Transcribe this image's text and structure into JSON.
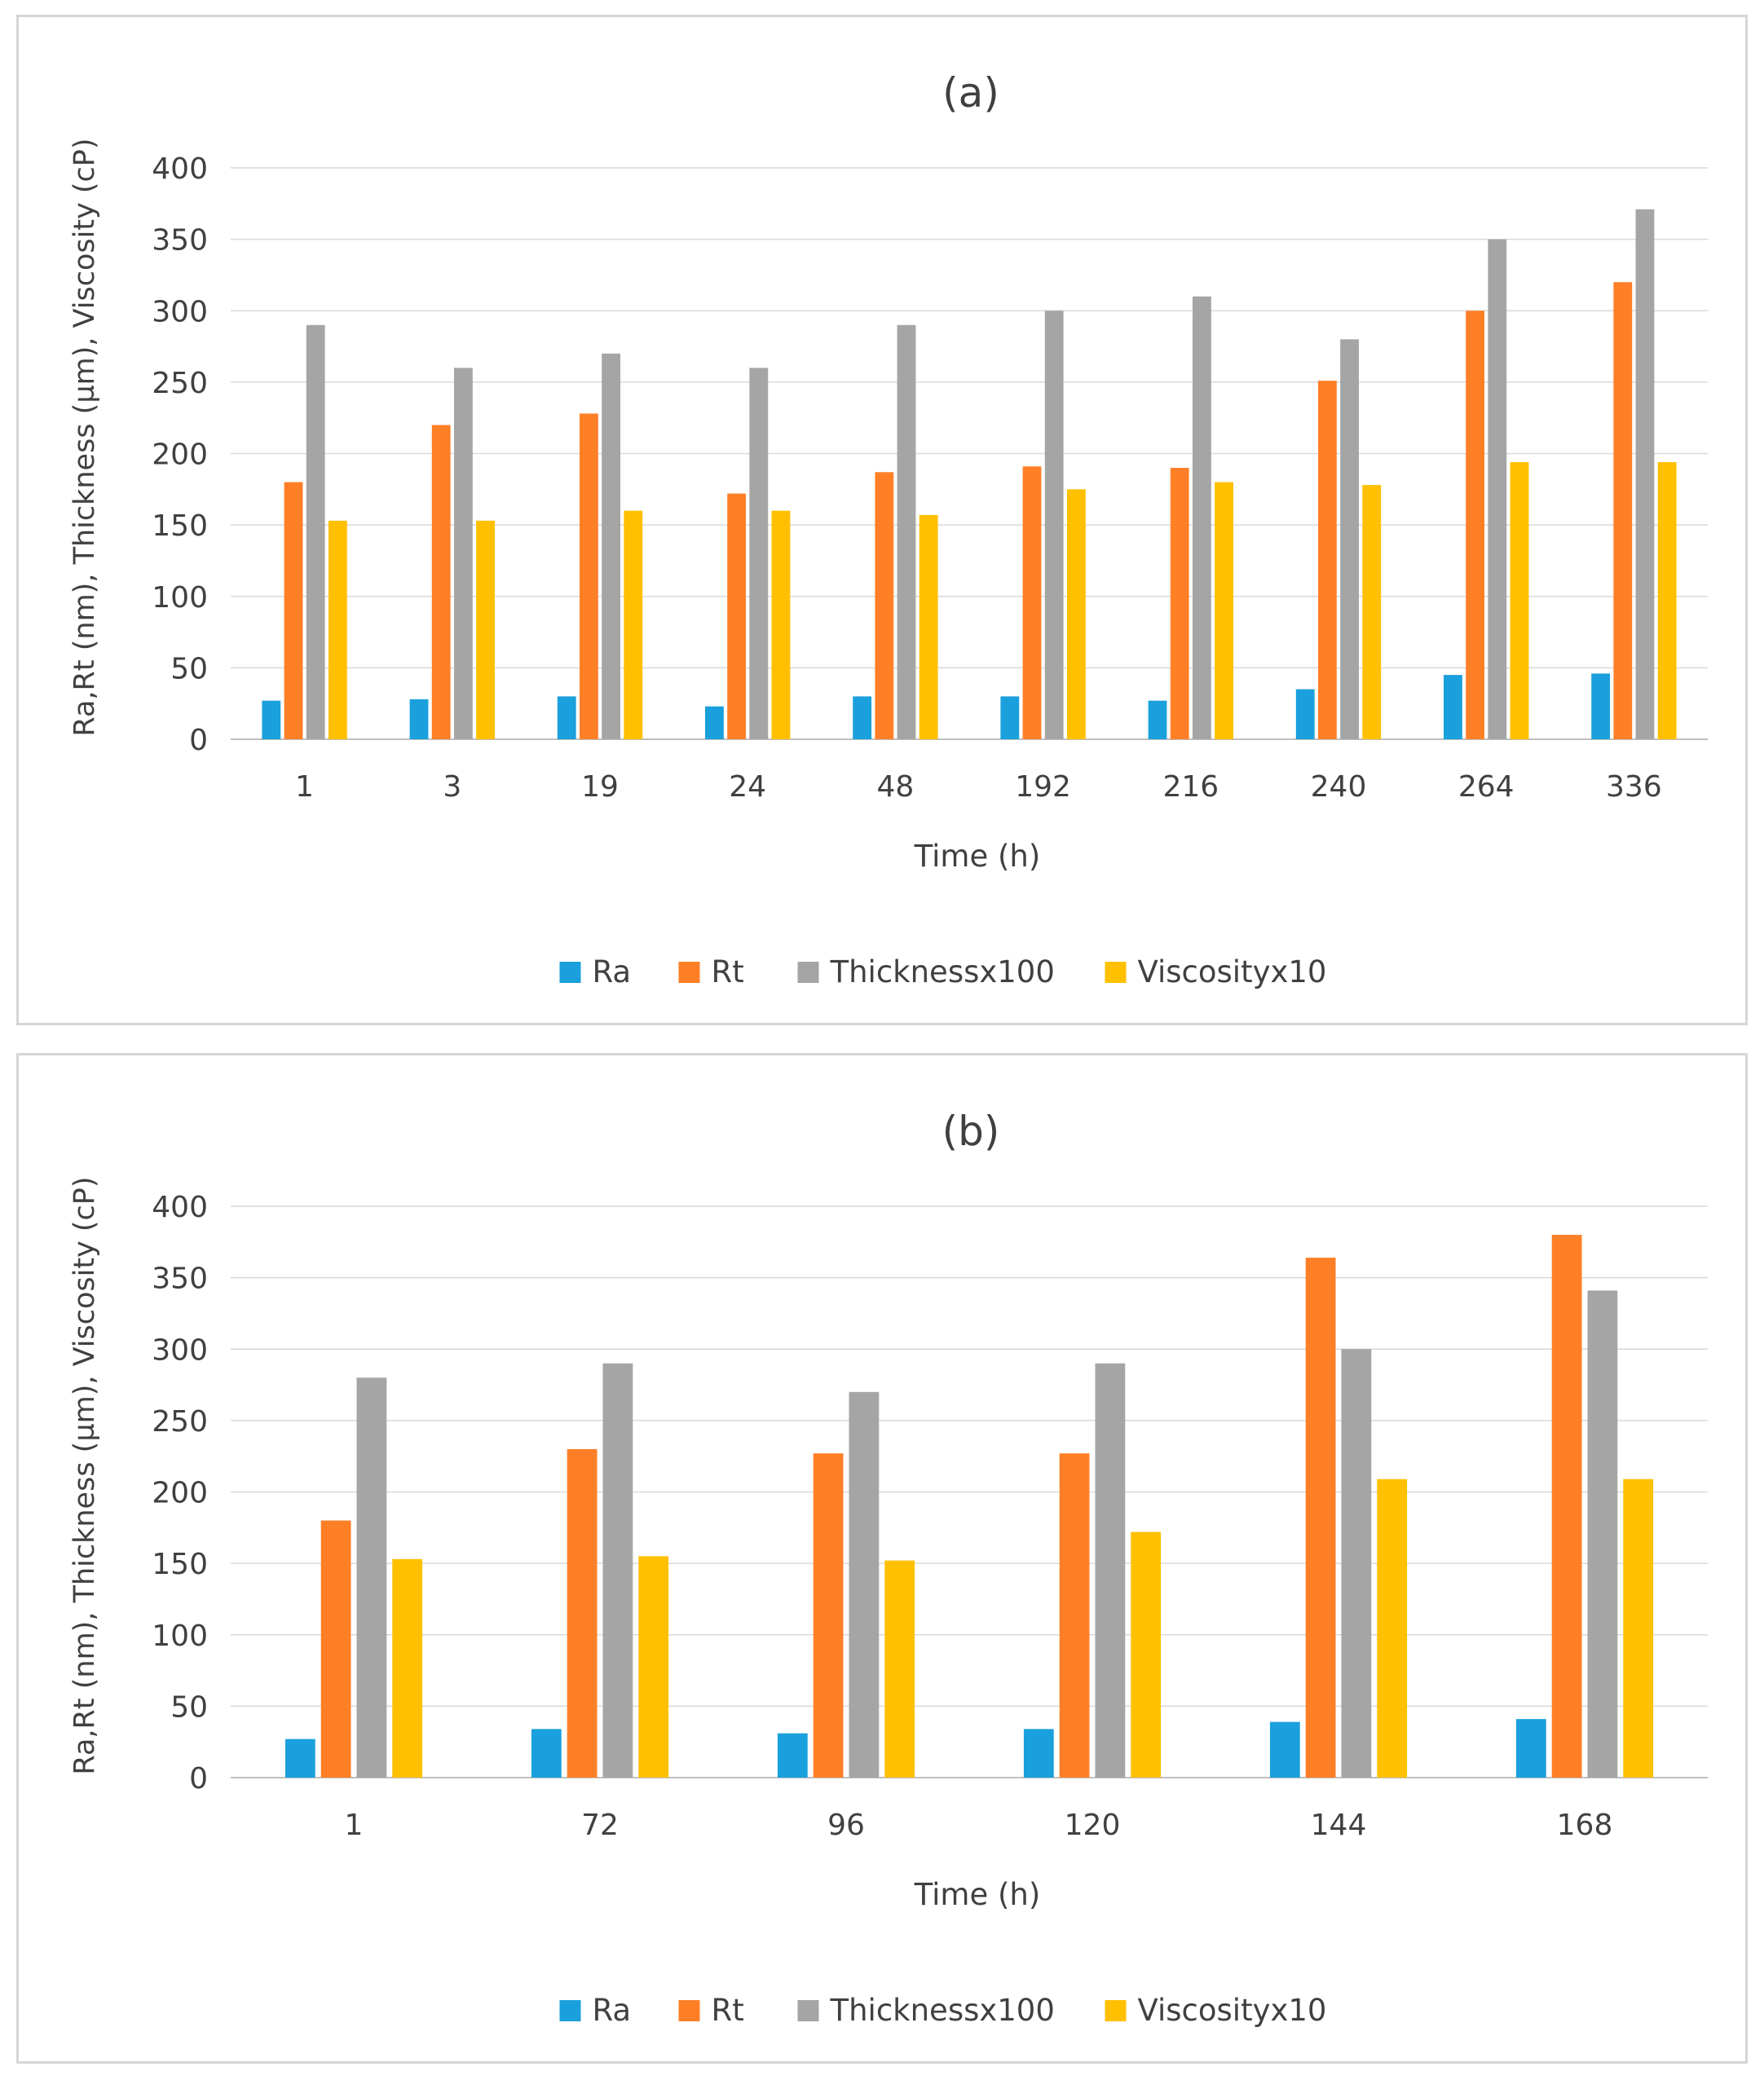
{
  "chart_data": [
    {
      "type": "bar",
      "title": "(a)",
      "xlabel": "Time (h)",
      "ylabel": "Ra,Rt (nm), Thickness (µm), Viscosity (cP)",
      "ylim": [
        0,
        400
      ],
      "yticks": [
        "0",
        "50",
        "100",
        "150",
        "200",
        "250",
        "300",
        "350",
        "400"
      ],
      "categories": [
        "1",
        "3",
        "19",
        "24",
        "48",
        "192",
        "216",
        "240",
        "264",
        "336"
      ],
      "legend_position": "bottom",
      "grid": true,
      "series": [
        {
          "name": "Ra",
          "color": "#1aa0dc",
          "values": [
            27,
            28,
            30,
            23,
            30,
            30,
            27,
            35,
            45,
            46
          ]
        },
        {
          "name": "Rt",
          "color": "#ff7f27",
          "values": [
            180,
            220,
            228,
            172,
            187,
            191,
            190,
            251,
            300,
            320
          ]
        },
        {
          "name": "Thicknessx100",
          "color": "#a5a5a5",
          "values": [
            290,
            260,
            270,
            260,
            290,
            300,
            310,
            280,
            350,
            371
          ]
        },
        {
          "name": "Viscosityx10",
          "color": "#ffc000",
          "values": [
            153,
            153,
            160,
            160,
            157,
            175,
            180,
            178,
            194,
            194
          ]
        }
      ]
    },
    {
      "type": "bar",
      "title": "(b)",
      "xlabel": "Time (h)",
      "ylabel": "Ra,Rt (nm), Thickness (µm), Viscosity (cP)",
      "ylim": [
        0,
        400
      ],
      "yticks": [
        "0",
        "50",
        "100",
        "150",
        "200",
        "250",
        "300",
        "350",
        "400"
      ],
      "categories": [
        "1",
        "72",
        "96",
        "120",
        "144",
        "168"
      ],
      "legend_position": "bottom",
      "grid": true,
      "series": [
        {
          "name": "Ra",
          "color": "#1aa0dc",
          "values": [
            27,
            34,
            31,
            34,
            39,
            41
          ]
        },
        {
          "name": "Rt",
          "color": "#ff7f27",
          "values": [
            180,
            230,
            227,
            227,
            364,
            380
          ]
        },
        {
          "name": "Thicknessx100",
          "color": "#a5a5a5",
          "values": [
            280,
            290,
            270,
            290,
            300,
            341
          ]
        },
        {
          "name": "Viscosityx10",
          "color": "#ffc000",
          "values": [
            153,
            155,
            152,
            172,
            209,
            209
          ]
        }
      ]
    }
  ]
}
